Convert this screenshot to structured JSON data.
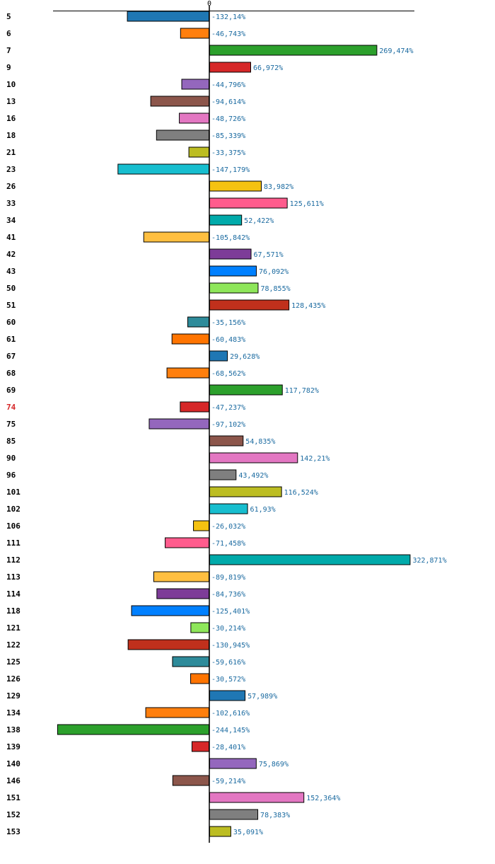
{
  "chart_data": {
    "type": "bar",
    "orientation": "horizontal",
    "zero_label": "0",
    "highlight_category": "74",
    "highlight_color": "#d62728",
    "categories": [
      "5",
      "6",
      "7",
      "9",
      "10",
      "13",
      "16",
      "18",
      "21",
      "23",
      "26",
      "33",
      "34",
      "41",
      "42",
      "43",
      "50",
      "51",
      "60",
      "61",
      "67",
      "68",
      "69",
      "74",
      "75",
      "85",
      "90",
      "96",
      "101",
      "102",
      "106",
      "111",
      "112",
      "113",
      "114",
      "118",
      "121",
      "122",
      "125",
      "126",
      "129",
      "134",
      "138",
      "139",
      "140",
      "146",
      "151",
      "152",
      "153"
    ],
    "values": [
      -132.14,
      -46.743,
      269.474,
      66.972,
      -44.796,
      -94.614,
      -48.726,
      -85.339,
      -33.375,
      -147.179,
      83.982,
      125.611,
      52.422,
      -105.842,
      67.571,
      76.092,
      78.855,
      128.435,
      -35.156,
      -60.483,
      29.628,
      -68.562,
      117.782,
      -47.237,
      -97.102,
      54.835,
      142.21,
      43.492,
      116.524,
      61.93,
      -26.032,
      -71.458,
      322.871,
      -89.819,
      -84.736,
      -125.401,
      -30.214,
      -130.945,
      -59.616,
      -30.572,
      57.989,
      -102.616,
      -244.145,
      -28.401,
      75.869,
      -59.214,
      152.364,
      78.383,
      35.091
    ],
    "value_labels": [
      "-132,14%",
      "-46,743%",
      "269,474%",
      "66,972%",
      "-44,796%",
      "-94,614%",
      "-48,726%",
      "-85,339%",
      "-33,375%",
      "-147,179%",
      "83,982%",
      "125,611%",
      "52,422%",
      "-105,842%",
      "67,571%",
      "76,092%",
      "78,855%",
      "128,435%",
      "-35,156%",
      "-60,483%",
      "29,628%",
      "-68,562%",
      "117,782%",
      "-47,237%",
      "-97,102%",
      "54,835%",
      "142,21%",
      "43,492%",
      "116,524%",
      "61,93%",
      "-26,032%",
      "-71,458%",
      "322,871%",
      "-89,819%",
      "-84,736%",
      "-125,401%",
      "-30,214%",
      "-130,945%",
      "-59,616%",
      "-30,572%",
      "57,989%",
      "-102,616%",
      "-244,145%",
      "-28,401%",
      "75,869%",
      "-59,214%",
      "152,364%",
      "78,383%",
      "35,091%"
    ],
    "colors": [
      "#1f77b4",
      "#ff7f0e",
      "#2ca02c",
      "#d62728",
      "#9467bd",
      "#8c564b",
      "#e377c2",
      "#7f7f7f",
      "#bcbd22",
      "#17becf",
      "#f5c211",
      "#ff5c8d",
      "#00aaaa",
      "#ffbf40",
      "#7d3c98",
      "#0080ff",
      "#8ee65a",
      "#c0301c",
      "#2e8b9a",
      "#ff7400"
    ],
    "label_color": "#1a6aa0",
    "xlim": [
      -250,
      330
    ],
    "title": "",
    "xlabel": "",
    "ylabel": ""
  }
}
